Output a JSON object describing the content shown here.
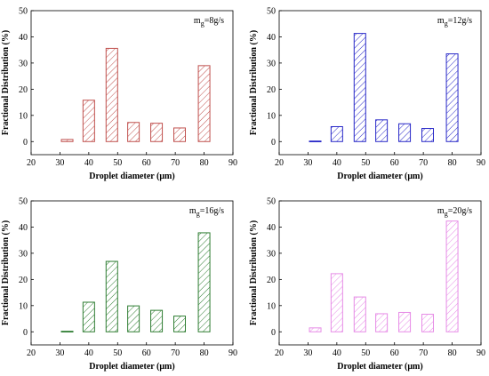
{
  "chart_data": [
    {
      "type": "bar",
      "annotation": {
        "main": "m",
        "sub": "g",
        "rest": "=8g/s"
      },
      "xlabel": "Droplet diameter (μm)",
      "ylabel": "Fractional Distribution (%)",
      "xlim": [
        20,
        90
      ],
      "ylim": [
        -5,
        50
      ],
      "xticks": [
        20,
        30,
        40,
        50,
        60,
        70,
        80,
        90
      ],
      "yticks": [
        0,
        10,
        20,
        30,
        40,
        50
      ],
      "x": [
        32.5,
        40,
        48,
        55.5,
        63.5,
        71.5,
        80
      ],
      "values": [
        0.8,
        15.8,
        35.6,
        7.3,
        7.0,
        5.2,
        29.0
      ],
      "color": "#c0504d",
      "hatch": "diagonal"
    },
    {
      "type": "bar",
      "annotation": {
        "main": "m",
        "sub": "g",
        "rest": "=12g/s"
      },
      "xlabel": "Droplet diameter (μm)",
      "ylabel": "Fractional Distribution (%)",
      "xlim": [
        20,
        90
      ],
      "ylim": [
        -5,
        50
      ],
      "xticks": [
        20,
        30,
        40,
        50,
        60,
        70,
        80,
        90
      ],
      "yticks": [
        0,
        10,
        20,
        30,
        40,
        50
      ],
      "x": [
        32.5,
        40,
        48,
        55.5,
        63.5,
        71.5,
        80
      ],
      "values": [
        0.2,
        5.7,
        41.3,
        8.3,
        6.8,
        5.0,
        33.5
      ],
      "color": "#2828c8",
      "hatch": "diagonal"
    },
    {
      "type": "bar",
      "annotation": {
        "main": "m",
        "sub": "g",
        "rest": "=16g/s"
      },
      "xlabel": "Droplet diameter (μm)",
      "ylabel": "Fractional Distribution (%)",
      "xlim": [
        20,
        90
      ],
      "ylim": [
        -5,
        50
      ],
      "xticks": [
        20,
        30,
        40,
        50,
        60,
        70,
        80,
        90
      ],
      "yticks": [
        0,
        10,
        20,
        30,
        40,
        50
      ],
      "x": [
        32.5,
        40,
        48,
        55.5,
        63.5,
        71.5,
        80
      ],
      "values": [
        0.2,
        11.3,
        26.9,
        9.9,
        8.2,
        6.0,
        37.8
      ],
      "color": "#2e7d32",
      "hatch": "diagonal"
    },
    {
      "type": "bar",
      "annotation": {
        "main": "m",
        "sub": "g",
        "rest": "=20g/s"
      },
      "xlabel": "Droplet diameter (μm)",
      "ylabel": "Fractional Distribution (%)",
      "xlim": [
        20,
        90
      ],
      "ylim": [
        -5,
        50
      ],
      "xticks": [
        20,
        30,
        40,
        50,
        60,
        70,
        80,
        90
      ],
      "yticks": [
        0,
        10,
        20,
        30,
        40,
        50
      ],
      "x": [
        32.5,
        40,
        48,
        55.5,
        63.5,
        71.5,
        80
      ],
      "values": [
        1.5,
        22.2,
        13.3,
        6.9,
        7.4,
        6.7,
        42.3
      ],
      "color": "#e68be6",
      "hatch": "diagonal"
    }
  ]
}
